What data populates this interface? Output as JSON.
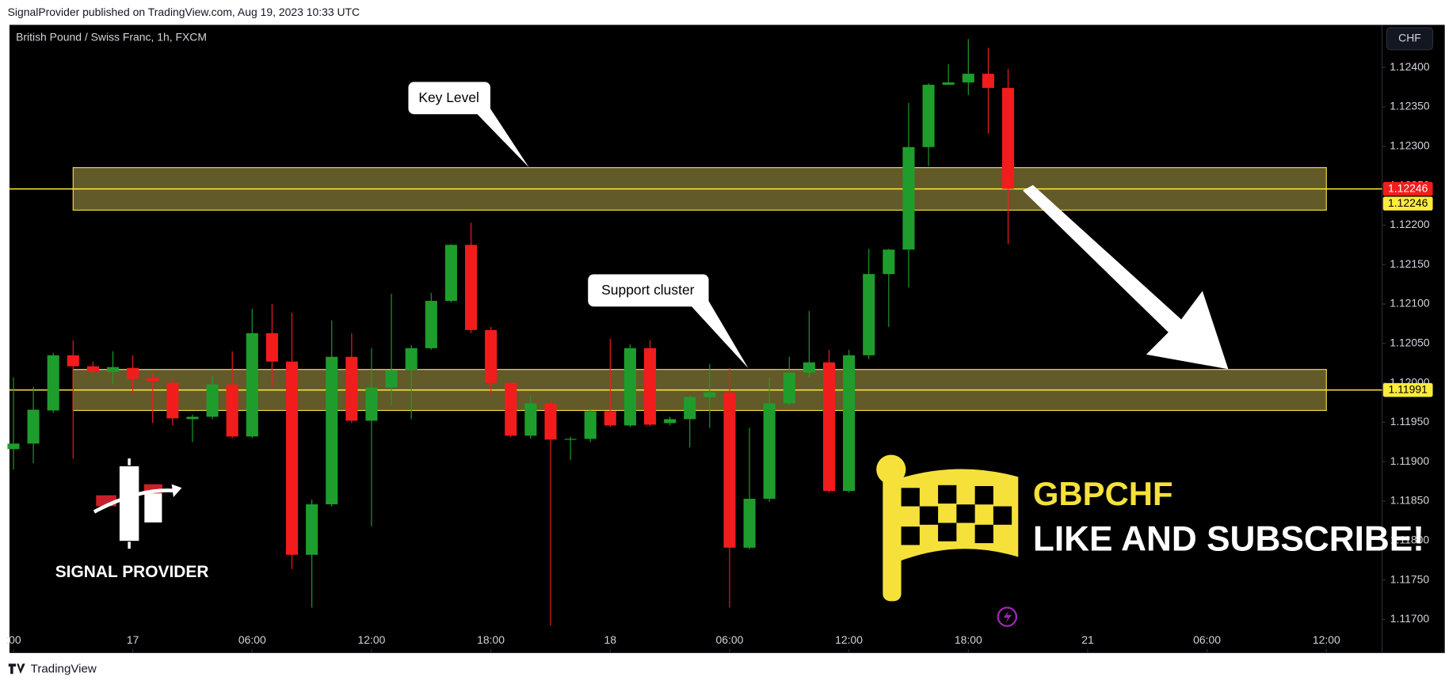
{
  "header": "SignalProvider published on TradingView.com, Aug 19, 2023 10:33 UTC",
  "footer": "TradingView",
  "chart_data": {
    "type": "candlestick",
    "title": "British Pound / Swiss Franc, 1h, FXCM",
    "currency": "CHF",
    "x": [
      -6,
      -5,
      -4,
      -3,
      -2,
      -1,
      0,
      1,
      2,
      3,
      4,
      5,
      6,
      7,
      8,
      9,
      10,
      11,
      12,
      13,
      14,
      15,
      16,
      17,
      18,
      19,
      20,
      21,
      22,
      23,
      24,
      25,
      26,
      27,
      28,
      29,
      30,
      31,
      32,
      33,
      34,
      35,
      36,
      37,
      38,
      39,
      40,
      41,
      42,
      43,
      44
    ],
    "open": [
      1.11916,
      1.11923,
      1.11965,
      1.12035,
      1.12021,
      1.12014,
      1.12019,
      1.12006,
      1.12,
      1.11954,
      1.11957,
      1.11998,
      1.11932,
      1.12063,
      1.12027,
      1.11782,
      1.11846,
      1.12033,
      1.11952,
      1.11994,
      1.12016,
      1.12044,
      1.12104,
      1.12175,
      1.12067,
      1.12,
      1.11933,
      1.11974,
      1.11928,
      1.11929,
      1.11964,
      1.11946,
      1.12044,
      1.11949,
      1.11954,
      1.11982,
      1.11988,
      1.11791,
      1.11853,
      1.11974,
      1.12013,
      1.12026,
      1.11863,
      1.12035,
      1.12138,
      1.12169,
      1.12299,
      1.12378,
      1.12381,
      1.12392,
      1.12374
    ],
    "high": [
      1.12007,
      1.11995,
      1.12038,
      1.12054,
      1.12027,
      1.1204,
      1.12035,
      1.12013,
      1.12005,
      1.1196,
      1.12009,
      1.1204,
      1.12094,
      1.121,
      1.12089,
      1.11852,
      1.12079,
      1.12063,
      1.12044,
      1.12113,
      1.12048,
      1.12114,
      1.12176,
      1.12203,
      1.12071,
      1.12001,
      1.11984,
      1.11977,
      1.11932,
      1.11967,
      1.12056,
      1.12049,
      1.12054,
      1.11957,
      1.11984,
      1.12024,
      1.12019,
      1.11943,
      1.12007,
      1.12033,
      1.12091,
      1.12042,
      1.12042,
      1.1217,
      1.1217,
      1.12355,
      1.1238,
      1.12404,
      1.12436,
      1.12425,
      1.12398
    ],
    "low": [
      1.1189,
      1.11898,
      1.11962,
      1.11904,
      1.12012,
      1.11998,
      1.11986,
      1.11949,
      1.11946,
      1.11925,
      1.11954,
      1.1193,
      1.1193,
      1.11995,
      1.11764,
      1.11715,
      1.11843,
      1.11949,
      1.11818,
      1.11972,
      1.11954,
      1.12042,
      1.12102,
      1.12063,
      1.11984,
      1.11931,
      1.11929,
      1.11692,
      1.11902,
      1.11925,
      1.11944,
      1.11944,
      1.11945,
      1.11946,
      1.11918,
      1.11943,
      1.11715,
      1.11789,
      1.11849,
      1.11972,
      1.12007,
      1.11861,
      1.11861,
      1.1203,
      1.12071,
      1.12121,
      1.12275,
      1.12378,
      1.12365,
      1.12316,
      1.12176
    ],
    "close": [
      1.11923,
      1.11966,
      1.12035,
      1.12021,
      1.12014,
      1.1202,
      1.12005,
      1.12002,
      1.11955,
      1.11957,
      1.11998,
      1.11932,
      1.12063,
      1.12027,
      1.11782,
      1.11846,
      1.12033,
      1.11952,
      1.11994,
      1.12016,
      1.12044,
      1.12104,
      1.12175,
      1.12067,
      1.12,
      1.11933,
      1.11974,
      1.11928,
      1.11929,
      1.11964,
      1.11946,
      1.12044,
      1.11947,
      1.11954,
      1.11982,
      1.11988,
      1.11791,
      1.11853,
      1.11974,
      1.12013,
      1.12026,
      1.11863,
      1.12035,
      1.12138,
      1.12169,
      1.12299,
      1.12378,
      1.12381,
      1.12392,
      1.12374,
      1.12246
    ],
    "up_color": "#1f9d2c",
    "down_color": "#f21c1c",
    "xlim": [
      -6.2,
      62.8
    ],
    "ylim": [
      1.11659,
      1.12454
    ],
    "xticks": [
      {
        "value": -6,
        "label": ":00"
      },
      {
        "value": 0,
        "label": "17"
      },
      {
        "value": 6,
        "label": "06:00"
      },
      {
        "value": 12,
        "label": "12:00"
      },
      {
        "value": 18,
        "label": "18:00"
      },
      {
        "value": 24,
        "label": "18"
      },
      {
        "value": 30,
        "label": "06:00"
      },
      {
        "value": 36,
        "label": "12:00"
      },
      {
        "value": 42,
        "label": "18:00"
      },
      {
        "value": 48,
        "label": "21"
      },
      {
        "value": 54,
        "label": "06:00"
      },
      {
        "value": 60,
        "label": "12:00"
      }
    ],
    "yticks": [
      {
        "value": 1.117,
        "label": "1.11700"
      },
      {
        "value": 1.1175,
        "label": "1.11750"
      },
      {
        "value": 1.118,
        "label": "1.11800"
      },
      {
        "value": 1.1185,
        "label": "1.11850"
      },
      {
        "value": 1.119,
        "label": "1.11900"
      },
      {
        "value": 1.1195,
        "label": "1.11950"
      },
      {
        "value": 1.12,
        "label": "1.12000"
      },
      {
        "value": 1.1205,
        "label": "1.12050"
      },
      {
        "value": 1.121,
        "label": "1.12100"
      },
      {
        "value": 1.1215,
        "label": "1.12150"
      },
      {
        "value": 1.122,
        "label": "1.12200"
      },
      {
        "value": 1.1225,
        "label": "1.12250"
      },
      {
        "value": 1.123,
        "label": "1.12300"
      },
      {
        "value": 1.1235,
        "label": "1.12350"
      },
      {
        "value": 1.124,
        "label": "1.12400"
      }
    ],
    "zones": [
      {
        "label": "Key Level",
        "range": [
          1.12219,
          1.12273
        ],
        "x": [
          -3,
          60
        ]
      },
      {
        "label": "Support cluster",
        "range": [
          1.11965,
          1.12017
        ],
        "x": [
          -3,
          60
        ]
      }
    ],
    "levels": [
      {
        "value": 1.12246,
        "label": "1.12246",
        "color": "#ffeb3b"
      },
      {
        "value": 1.11991,
        "label": "1.11991",
        "color": "#ffeb3b"
      }
    ],
    "last_price": {
      "value": 1.12246,
      "label": "1.12246",
      "color": "#f21c1c"
    },
    "annotations": [
      "GBPCHF",
      "LIKE AND SUBSCRIBE!",
      "SIGNAL PROVIDER"
    ]
  }
}
